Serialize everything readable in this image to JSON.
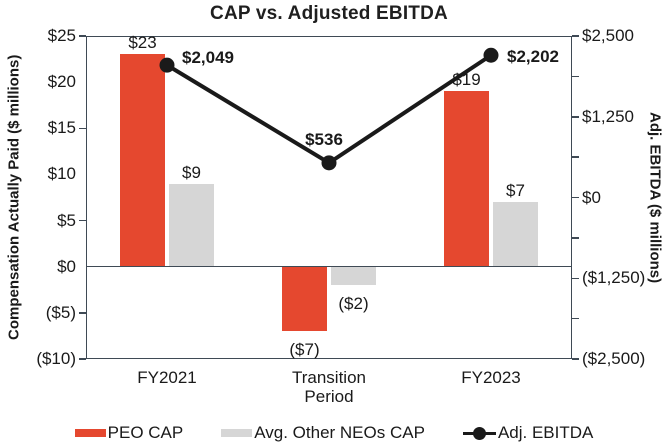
{
  "title": "CAP vs. Adjusted EBITDA",
  "chart_data": {
    "type": "combo-bar-line",
    "title": "CAP vs. Adjusted EBITDA",
    "categories": [
      "FY2021",
      "Transition Period",
      "FY2023"
    ],
    "category_display": [
      "FY2021",
      "Transition\nPeriod",
      "FY2023"
    ],
    "left_axis": {
      "title": "Compensation Actually Paid ($ millions)",
      "min": -10,
      "max": 25,
      "tick_values": [
        25,
        20,
        15,
        10,
        5,
        0,
        -5,
        -10
      ],
      "tick_labels": [
        "$25",
        "$20",
        "$15",
        "$10",
        "$5",
        "$0",
        "($5)",
        "($10)"
      ],
      "axis_tick_marks": [
        25,
        15,
        5,
        -5,
        -10
      ]
    },
    "right_axis": {
      "title": "Adj. EBITDA ($ millions)",
      "min": -2500,
      "max": 2500,
      "tick_values": [
        2500,
        1250,
        0,
        -1250,
        -2500
      ],
      "tick_labels": [
        "$2,500",
        "$1,250",
        "$0",
        "($1,250)",
        "($2,500)"
      ],
      "axis_tick_marks": [
        2500,
        1875,
        1250,
        625,
        0,
        -625,
        -1250,
        -1875,
        -2500
      ]
    },
    "series": [
      {
        "name": "PEO CAP",
        "type": "bar",
        "axis": "left",
        "color": "#e5482f",
        "values": [
          23,
          -7,
          19
        ],
        "value_labels": [
          "$23",
          "($7)",
          "$19"
        ]
      },
      {
        "name": "Avg. Other NEOs CAP",
        "type": "bar",
        "axis": "left",
        "color": "#d6d6d6",
        "values": [
          9,
          -2,
          7
        ],
        "value_labels": [
          "$9",
          "($2)",
          "$7"
        ]
      },
      {
        "name": "Adj. EBITDA",
        "type": "line",
        "axis": "right",
        "color": "#1a1a1a",
        "values": [
          2049,
          536,
          2202
        ],
        "value_labels": [
          "$2,049",
          "$536",
          "$2,202"
        ],
        "label_positions": [
          "right-up",
          "above",
          "right"
        ]
      }
    ],
    "grid": false,
    "legend_position": "bottom",
    "zero_line": true,
    "axis_color": "#3f4a55"
  }
}
